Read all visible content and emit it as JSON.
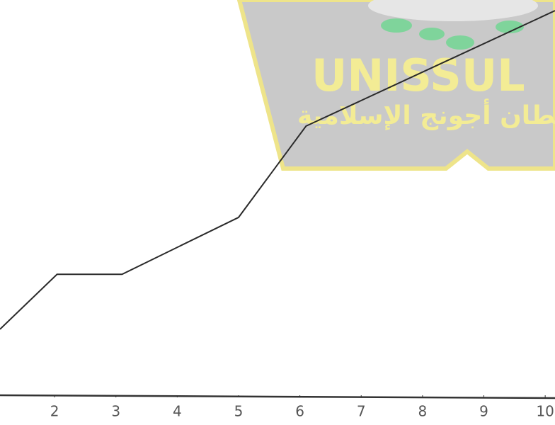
{
  "chart_data": {
    "type": "line",
    "x": [
      1.11,
      2.04,
      3.1,
      5.0,
      6.1,
      10.16
    ],
    "series": [
      {
        "color": "#2a2a2a",
        "values": [
          1.67,
          3.06,
          3.06,
          4.5,
          6.81,
          9.73
        ]
      }
    ],
    "xlim": [
      1.11,
      10.16
    ],
    "ylim": [
      0,
      10
    ],
    "xticks": [
      2,
      3,
      4,
      5,
      6,
      7,
      8,
      9,
      10
    ],
    "watermark": {
      "title": "UNISSUL",
      "subtitle": "سلطان أجونج الإسلامية"
    }
  }
}
